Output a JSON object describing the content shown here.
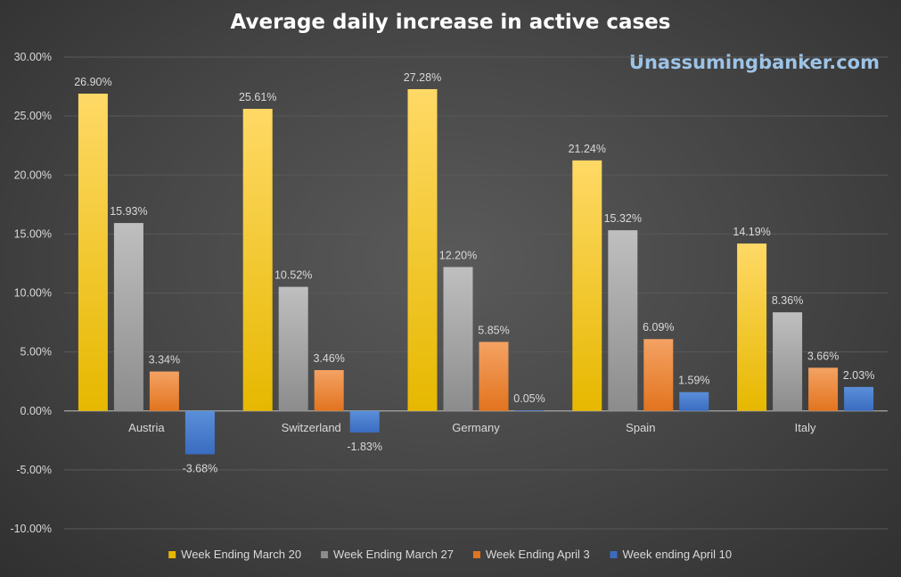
{
  "chart_data": {
    "type": "bar",
    "title": "Average daily increase in active cases",
    "watermark": "Unassumingbanker.com",
    "categories": [
      "Austria",
      "Switzerland",
      "Germany",
      "Spain",
      "Italy"
    ],
    "series": [
      {
        "name": "Week Ending March 20",
        "values": [
          26.9,
          25.61,
          27.28,
          21.24,
          14.19
        ],
        "color_top": "#ffd966",
        "color_bottom": "#e6b800"
      },
      {
        "name": "Week Ending March 27",
        "values": [
          15.93,
          10.52,
          12.2,
          15.32,
          8.36
        ],
        "color_top": "#bfbfbf",
        "color_bottom": "#8c8c8c"
      },
      {
        "name": "Week Ending April 3",
        "values": [
          3.34,
          3.46,
          5.85,
          6.09,
          3.66
        ],
        "color_top": "#f4a263",
        "color_bottom": "#e2741f"
      },
      {
        "name": "Week ending April 10",
        "values": [
          -3.68,
          -1.83,
          0.05,
          1.59,
          2.03
        ],
        "color_top": "#5b8fd9",
        "color_bottom": "#3a6cc0"
      }
    ],
    "ylim": [
      -10,
      30
    ],
    "yticks": [
      -10,
      -5,
      0,
      5,
      10,
      15,
      20,
      25,
      30
    ],
    "value_format": "percent_2dp",
    "grid": true,
    "legend_position": "bottom",
    "colors": {
      "text": "#d9d9d9",
      "grid": "#595959",
      "axis": "#a6a6a6"
    }
  }
}
